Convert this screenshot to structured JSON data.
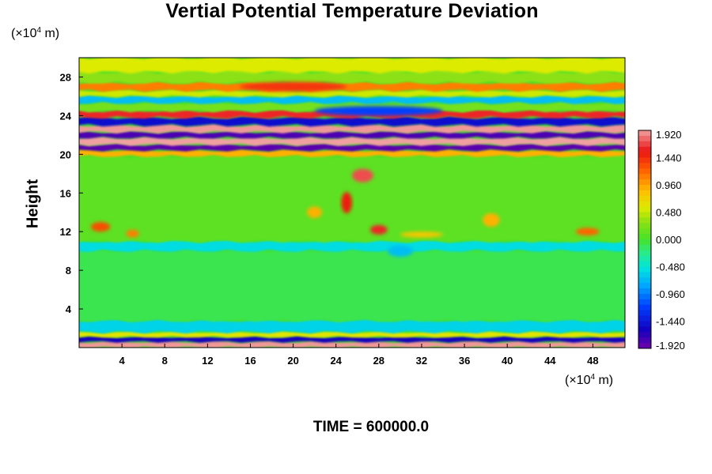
{
  "chart_data": {
    "type": "heatmap",
    "title": "Vertial Potential Temperature Deviation",
    "xlabel": "",
    "ylabel": "Height",
    "x_unit_prefix": "(×10",
    "x_unit_exp": "4",
    "x_unit_suffix": " m)",
    "y_unit_prefix": "(×10",
    "y_unit_exp": "4",
    "y_unit_suffix": " m)",
    "xlim": [
      0,
      51
    ],
    "ylim": [
      0,
      30
    ],
    "x_ticks": [
      4,
      8,
      12,
      16,
      20,
      24,
      28,
      32,
      36,
      40,
      44,
      48
    ],
    "x_tick_labels": [
      "4",
      "8",
      "12",
      "16",
      "20",
      "24",
      "28",
      "32",
      "36",
      "40",
      "44",
      "48"
    ],
    "y_ticks": [
      4,
      8,
      12,
      16,
      20,
      24,
      28
    ],
    "y_tick_labels": [
      "4",
      "8",
      "12",
      "16",
      "20",
      "24",
      "28"
    ],
    "colorbar": {
      "range": [
        -1.92,
        1.92
      ],
      "labels": [
        "1.920",
        "1.440",
        "0.960",
        "0.480",
        "0.000",
        "-0.480",
        "-0.960",
        "-1.440",
        "-1.920"
      ],
      "label_values": [
        1.92,
        1.44,
        0.96,
        0.48,
        0.0,
        -0.48,
        -0.96,
        -1.44,
        -1.92
      ]
    },
    "bands": [
      {
        "y": [
          0.0,
          0.6
        ],
        "value": 1.9
      },
      {
        "y": [
          0.6,
          1.1
        ],
        "value": -1.6
      },
      {
        "y": [
          1.1,
          1.6
        ],
        "value": 0.6
      },
      {
        "y": [
          1.6,
          2.8
        ],
        "value": -0.6
      },
      {
        "y": [
          2.8,
          10.0
        ],
        "value": -0.1
      },
      {
        "y": [
          10.0,
          11.0
        ],
        "value": -0.55
      },
      {
        "y": [
          11.0,
          19.8
        ],
        "value": 0.1
      },
      {
        "y": [
          19.8,
          20.4
        ],
        "value": 0.9
      },
      {
        "y": [
          20.4,
          21.0
        ],
        "value": -1.85
      },
      {
        "y": [
          21.0,
          21.7
        ],
        "value": 1.92
      },
      {
        "y": [
          21.7,
          22.3
        ],
        "value": -1.8
      },
      {
        "y": [
          22.3,
          23.0
        ],
        "value": 1.9
      },
      {
        "y": [
          23.0,
          23.8
        ],
        "value": -1.5
      },
      {
        "y": [
          23.8,
          24.5
        ],
        "value": 1.6
      },
      {
        "y": [
          24.5,
          25.3
        ],
        "value": 0.2
      },
      {
        "y": [
          25.3,
          26.0
        ],
        "value": -0.7
      },
      {
        "y": [
          26.0,
          26.6
        ],
        "value": 0.5
      },
      {
        "y": [
          26.6,
          27.4
        ],
        "value": 1.1
      },
      {
        "y": [
          27.4,
          28.5
        ],
        "value": 0.3
      },
      {
        "y": [
          28.5,
          30.0
        ],
        "value": 0.55
      }
    ],
    "features": [
      {
        "x": 26.5,
        "y": 17.8,
        "rx": 1.0,
        "ry": 0.7,
        "value": 1.7
      },
      {
        "x": 25.0,
        "y": 15.0,
        "rx": 0.5,
        "ry": 1.1,
        "value": 1.5
      },
      {
        "x": 28.0,
        "y": 12.2,
        "rx": 0.8,
        "ry": 0.5,
        "value": 1.6
      },
      {
        "x": 22.0,
        "y": 14.0,
        "rx": 0.7,
        "ry": 0.6,
        "value": 0.9
      },
      {
        "x": 2.0,
        "y": 12.5,
        "rx": 0.9,
        "ry": 0.5,
        "value": 1.3
      },
      {
        "x": 5.0,
        "y": 11.8,
        "rx": 0.6,
        "ry": 0.4,
        "value": 1.1
      },
      {
        "x": 38.5,
        "y": 13.2,
        "rx": 0.8,
        "ry": 0.7,
        "value": 0.9
      },
      {
        "x": 47.5,
        "y": 12.0,
        "rx": 1.1,
        "ry": 0.4,
        "value": 1.2
      },
      {
        "x": 32.0,
        "y": 11.7,
        "rx": 2.0,
        "ry": 0.3,
        "value": 0.8
      },
      {
        "x": 30.0,
        "y": 10.0,
        "rx": 1.2,
        "ry": 0.6,
        "value": -0.7
      },
      {
        "x": 20.0,
        "y": 27.0,
        "rx": 5.0,
        "ry": 0.5,
        "value": 1.4
      },
      {
        "x": 28.0,
        "y": 24.5,
        "rx": 6.0,
        "ry": 0.5,
        "value": -1.2
      }
    ]
  }
}
